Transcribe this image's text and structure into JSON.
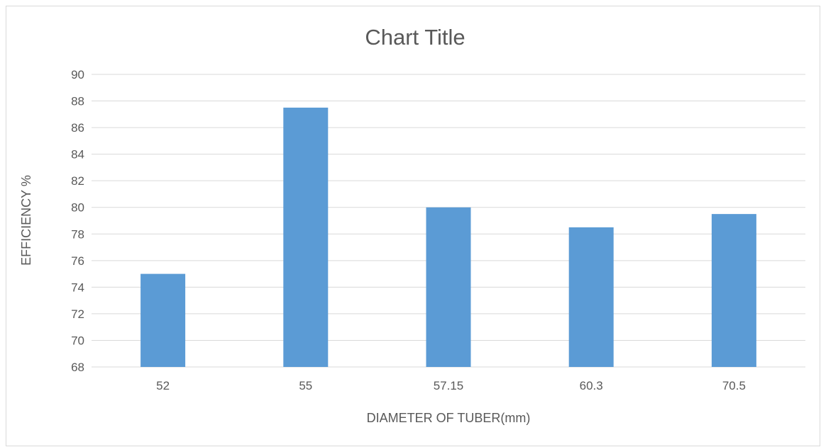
{
  "chart_data": {
    "type": "bar",
    "title": "Chart Title",
    "xlabel": "DIAMETER OF TUBER(mm)",
    "ylabel": "EFFICIENCY %",
    "categories": [
      "52",
      "55",
      "57.15",
      "60.3",
      "70.5"
    ],
    "values": [
      75,
      87.5,
      80,
      78.5,
      79.5
    ],
    "ylim": [
      68,
      90
    ],
    "yticks": [
      "68",
      "70",
      "72",
      "74",
      "76",
      "78",
      "80",
      "82",
      "84",
      "86",
      "88",
      "90"
    ],
    "grid": true,
    "legend": "none",
    "bar_color": "#5b9bd5"
  }
}
